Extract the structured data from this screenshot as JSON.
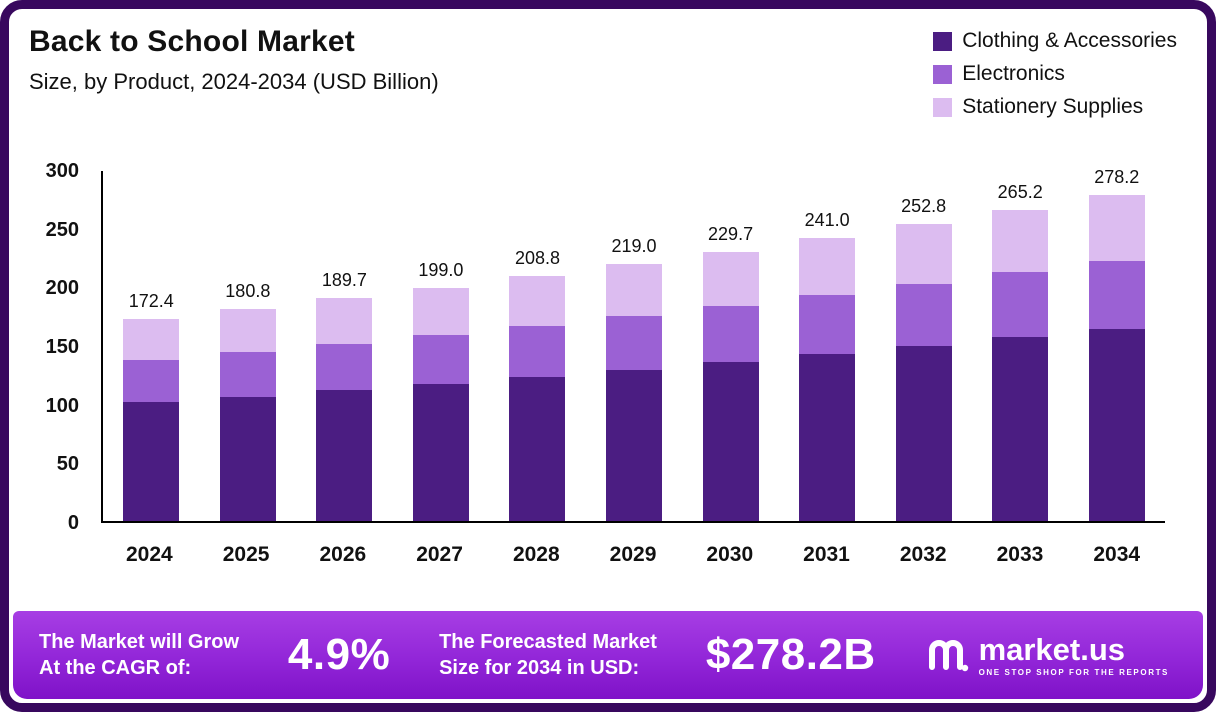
{
  "header": {
    "title": "Back to School Market",
    "subtitle": "Size, by Product, 2024-2034 (USD Billion)"
  },
  "legend": [
    {
      "label": "Clothing & Accessories",
      "color": "#4b1d82"
    },
    {
      "label": "Electronics",
      "color": "#9b61d4"
    },
    {
      "label": "Stationery Supplies",
      "color": "#dcbcf0"
    }
  ],
  "chart_data": {
    "type": "bar",
    "stacked": true,
    "title": "Back to School Market Size, by Product, 2024-2034 (USD Billion)",
    "xlabel": "",
    "ylabel": "USD Billion",
    "ylim": [
      0,
      300
    ],
    "yticks": [
      0,
      50,
      100,
      150,
      200,
      250,
      300
    ],
    "grid": false,
    "legend_position": "top-right",
    "categories": [
      "2024",
      "2025",
      "2026",
      "2027",
      "2028",
      "2029",
      "2030",
      "2031",
      "2032",
      "2033",
      "2034"
    ],
    "totals": [
      172.4,
      180.8,
      189.7,
      199.0,
      208.8,
      219.0,
      229.7,
      241.0,
      252.8,
      265.2,
      278.2
    ],
    "series": [
      {
        "name": "Clothing & Accessories",
        "color": "#4b1d82",
        "values": [
          101.0,
          106.0,
          111.5,
          117.0,
          123.0,
          129.0,
          135.5,
          142.0,
          149.0,
          156.5,
          164.0
        ]
      },
      {
        "name": "Electronics",
        "color": "#9b61d4",
        "values": [
          36.0,
          38.0,
          39.5,
          41.5,
          43.5,
          45.5,
          48.0,
          50.5,
          53.0,
          55.5,
          58.0
        ]
      },
      {
        "name": "Stationery Supplies",
        "color": "#dcbcf0",
        "values": [
          35.4,
          36.8,
          38.7,
          40.5,
          42.3,
          44.5,
          46.2,
          48.5,
          50.8,
          53.2,
          56.2
        ]
      }
    ]
  },
  "banner": {
    "cagr_label_line1": "The Market will Grow",
    "cagr_label_line2": "At the CAGR of:",
    "cagr_value": "4.9%",
    "forecast_label_line1": "The Forecasted Market",
    "forecast_label_line2": "Size for 2034 in USD:",
    "forecast_value": "$278.2B",
    "brand": "market.us",
    "brand_tagline": "ONE STOP SHOP FOR THE REPORTS"
  }
}
